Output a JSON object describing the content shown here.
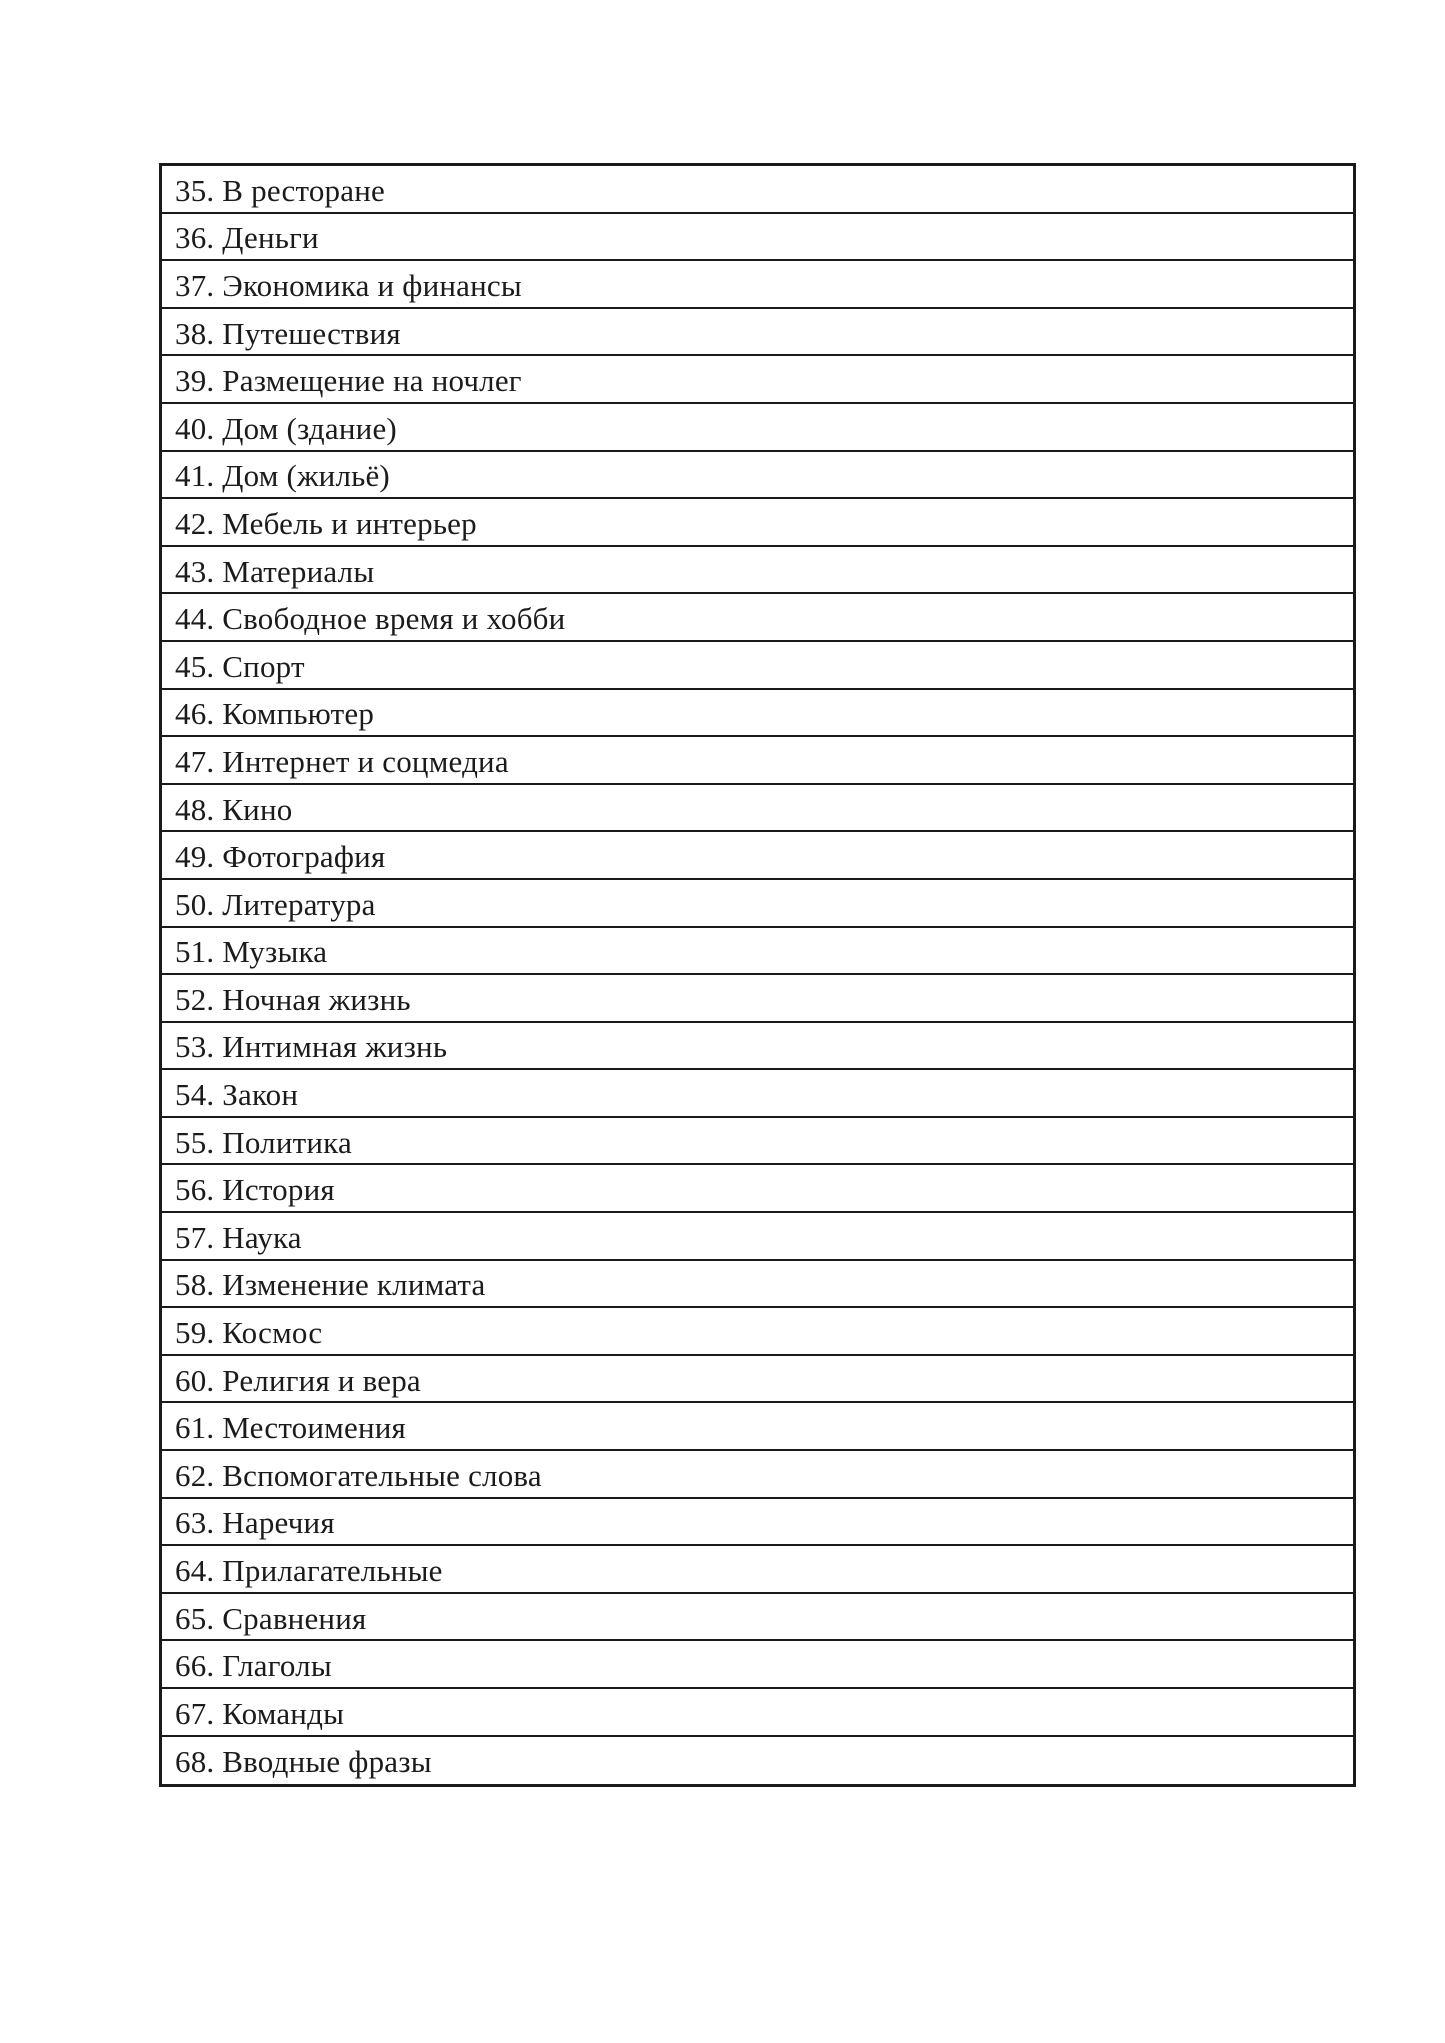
{
  "page": {
    "background_color": "#ffffff",
    "text_color": "#1b1b1b",
    "border_color": "#1a1a1a"
  },
  "toc": {
    "items": [
      "35. В ресторане",
      "36. Деньги",
      "37. Экономика и финансы",
      "38. Путешествия",
      "39. Размещение на ночлег",
      "40. Дом (здание)",
      "41. Дом (жильё)",
      "42. Мебель и интерьер",
      "43. Материалы",
      "44. Свободное время и хобби",
      "45. Спорт",
      "46. Компьютер",
      "47. Интернет и соцмедиа",
      "48. Кино",
      "49. Фотография",
      "50. Литература",
      "51. Музыка",
      "52. Ночная жизнь",
      "53. Интимная жизнь",
      "54. Закон",
      "55. Политика",
      "56. История",
      "57. Наука",
      "58. Изменение климата",
      "59. Космос",
      "60. Религия и вера",
      "61. Местоимения",
      "62. Вспомогательные слова",
      "63. Наречия",
      "64. Прилагательные",
      "65. Сравнения",
      "66. Глаголы",
      "67. Команды",
      "68. Вводные фразы"
    ]
  }
}
